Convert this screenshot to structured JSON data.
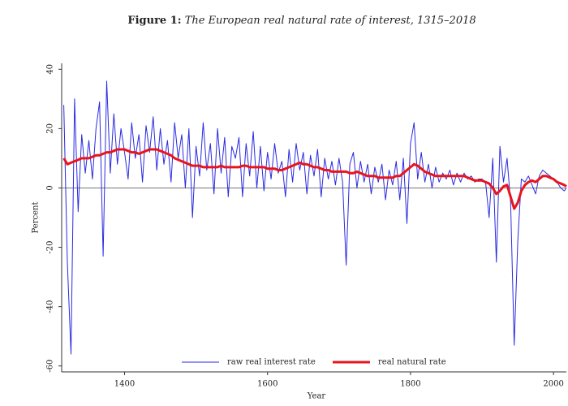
{
  "chart_data": {
    "type": "line",
    "title_prefix": "Figure 1:",
    "title": "The European real natural rate of interest, 1315–2018",
    "xlabel": "Year",
    "ylabel": "Percent",
    "x": [
      1315,
      1320,
      1325,
      1330,
      1335,
      1340,
      1345,
      1350,
      1355,
      1360,
      1365,
      1370,
      1375,
      1380,
      1385,
      1390,
      1395,
      1400,
      1405,
      1410,
      1415,
      1420,
      1425,
      1430,
      1435,
      1440,
      1445,
      1450,
      1455,
      1460,
      1465,
      1470,
      1475,
      1480,
      1485,
      1490,
      1495,
      1500,
      1505,
      1510,
      1515,
      1520,
      1525,
      1530,
      1535,
      1540,
      1545,
      1550,
      1555,
      1560,
      1565,
      1570,
      1575,
      1580,
      1585,
      1590,
      1595,
      1600,
      1605,
      1610,
      1615,
      1620,
      1625,
      1630,
      1635,
      1640,
      1645,
      1650,
      1655,
      1660,
      1665,
      1670,
      1675,
      1680,
      1685,
      1690,
      1695,
      1700,
      1705,
      1710,
      1715,
      1720,
      1725,
      1730,
      1735,
      1740,
      1745,
      1750,
      1755,
      1760,
      1765,
      1770,
      1775,
      1780,
      1785,
      1790,
      1795,
      1800,
      1805,
      1810,
      1815,
      1820,
      1825,
      1830,
      1835,
      1840,
      1845,
      1850,
      1855,
      1860,
      1865,
      1870,
      1875,
      1880,
      1885,
      1890,
      1895,
      1900,
      1905,
      1910,
      1915,
      1920,
      1925,
      1930,
      1935,
      1940,
      1945,
      1950,
      1955,
      1960,
      1965,
      1970,
      1975,
      1980,
      1985,
      1990,
      1995,
      2000,
      2005,
      2010,
      2015,
      2018
    ],
    "series": [
      {
        "name": "raw real interest rate",
        "color": "#2a2ae0",
        "width": 1,
        "values": [
          28,
          -25,
          -56,
          30,
          -8,
          18,
          5,
          16,
          3,
          20,
          29,
          -23,
          36,
          5,
          25,
          8,
          20,
          12,
          3,
          22,
          10,
          18,
          2,
          21,
          12,
          24,
          6,
          20,
          8,
          16,
          2,
          22,
          10,
          18,
          0,
          20,
          -10,
          14,
          4,
          22,
          6,
          15,
          -2,
          20,
          5,
          17,
          -3,
          14,
          10,
          17,
          -3,
          15,
          4,
          19,
          0,
          14,
          -1,
          12,
          3,
          15,
          5,
          9,
          -3,
          13,
          2,
          15,
          6,
          12,
          -2,
          11,
          4,
          13,
          -3,
          10,
          3,
          9,
          1,
          10,
          2,
          -26,
          8,
          12,
          0,
          9,
          2,
          8,
          -2,
          7,
          2,
          8,
          -4,
          6,
          1,
          9,
          -4,
          10,
          -12,
          15,
          22,
          3,
          12,
          2,
          8,
          0,
          7,
          2,
          5,
          3,
          6,
          1,
          5,
          2,
          5,
          3,
          4,
          2,
          3,
          3,
          2,
          -10,
          10,
          -25,
          14,
          2,
          10,
          -5,
          -53,
          -18,
          3,
          2,
          4,
          1,
          -2,
          4,
          6,
          5,
          4,
          3,
          2,
          0,
          -1,
          0
        ]
      },
      {
        "name": "real natural rate",
        "color": "#e8141c",
        "width": 3,
        "values": [
          10,
          8,
          8.5,
          9,
          9.5,
          10,
          10,
          10,
          10.5,
          11,
          11,
          11.5,
          12,
          12,
          12.5,
          13,
          13,
          13,
          12.5,
          12,
          12,
          11.5,
          12,
          12.5,
          13,
          13,
          13,
          12.5,
          12,
          11.5,
          11,
          10,
          9.5,
          9,
          8.5,
          8,
          7.5,
          7.5,
          7.5,
          7,
          7,
          7,
          7,
          7,
          7.5,
          7,
          7,
          7,
          7,
          7,
          7.5,
          7.5,
          7,
          7,
          7,
          7,
          7,
          6.5,
          6.5,
          6.5,
          6,
          6,
          6.5,
          7,
          7.5,
          8,
          8.5,
          8,
          8,
          7.5,
          7,
          7,
          6.5,
          6,
          6,
          5.5,
          5.5,
          5.5,
          5.5,
          5.5,
          5,
          5,
          5.5,
          5,
          4.5,
          4,
          4,
          4,
          3.5,
          3.5,
          3.5,
          3.5,
          3.5,
          4,
          4,
          5,
          6,
          7,
          8,
          7.5,
          6.5,
          5.5,
          5,
          4.5,
          4,
          4,
          4,
          4,
          4,
          4,
          4,
          4,
          4,
          3.5,
          3,
          2.5,
          2.5,
          2.5,
          2,
          1.5,
          0,
          -2,
          -1,
          0.5,
          1,
          -3,
          -7,
          -5,
          -1,
          1,
          2,
          2.5,
          2,
          3,
          4,
          4,
          3.5,
          3,
          2,
          1.5,
          1,
          0.5
        ]
      }
    ],
    "xlim": [
      1312,
      2018
    ],
    "xticks": [
      1400,
      1600,
      1800,
      2000
    ],
    "ylim": [
      -62,
      42
    ],
    "yticks": [
      -60,
      -40,
      -20,
      0,
      20,
      40
    ],
    "hline": 0,
    "legend": "lower center"
  }
}
